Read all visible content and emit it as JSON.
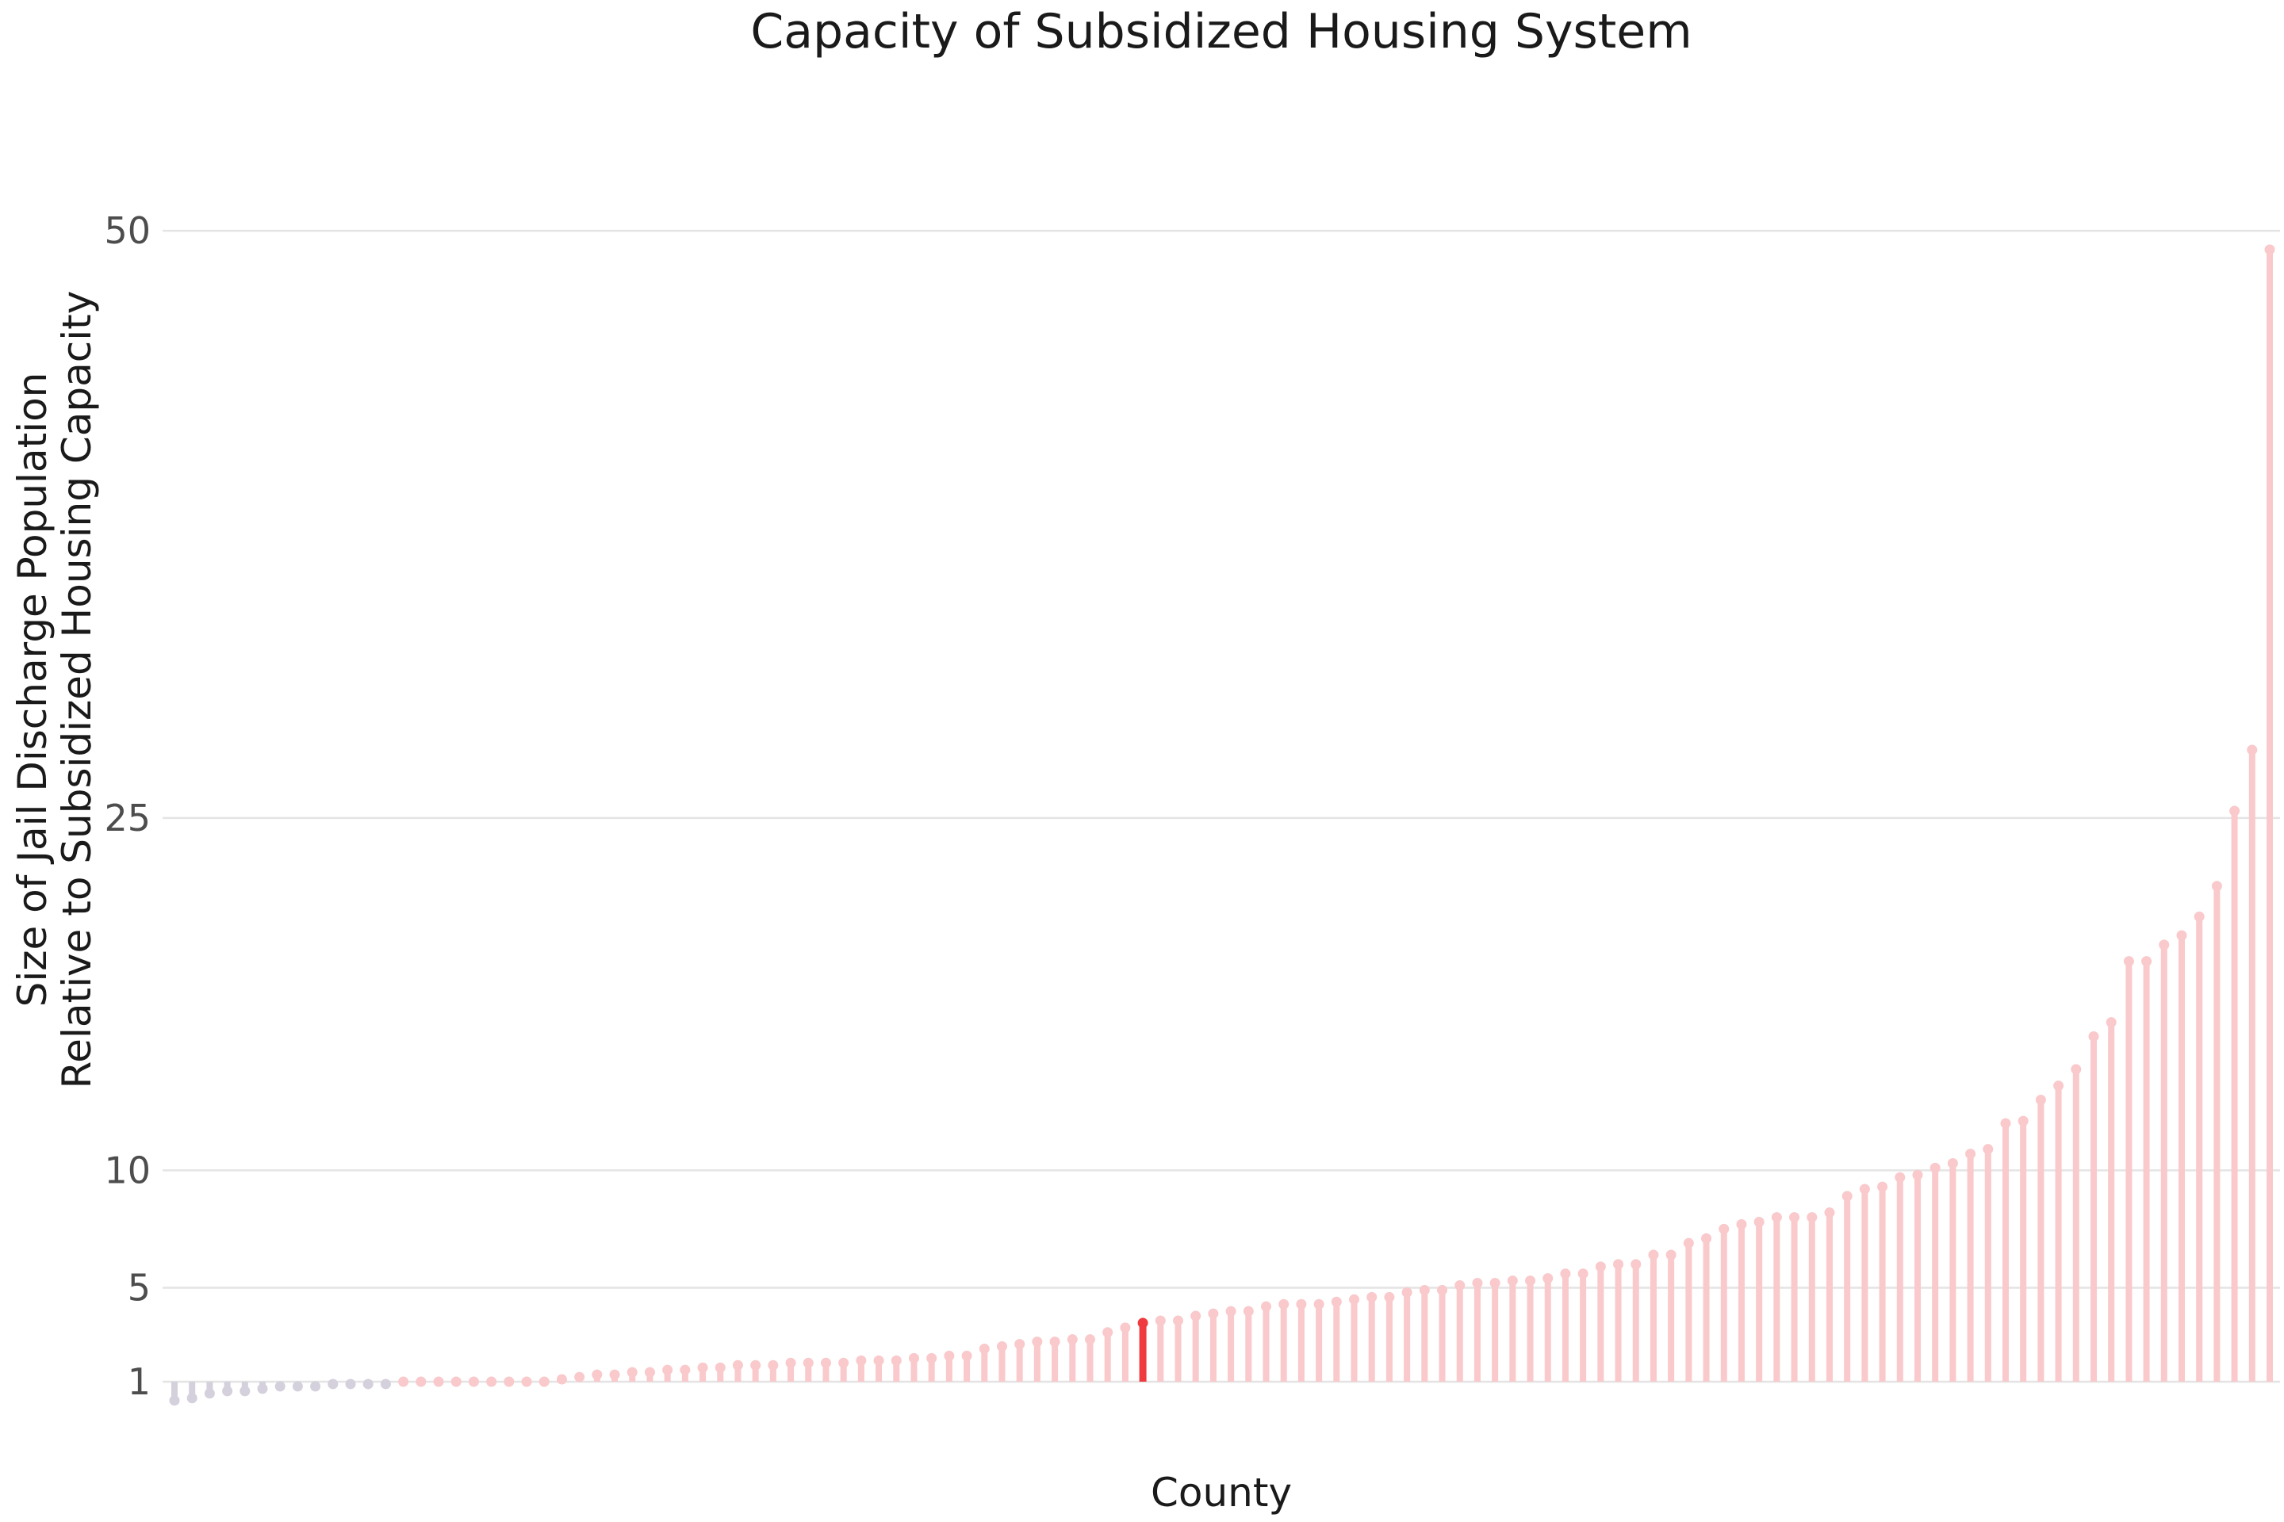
{
  "chart_data": {
    "type": "lollipop",
    "title": "Capacity of Subsidized Housing System",
    "xlabel": "County",
    "ylabel": [
      "Size of Jail Discharge Population",
      "Relative to Subsidized Housing Capacity"
    ],
    "yticks": [
      1,
      5,
      10,
      25,
      50
    ],
    "ylim": [
      0,
      51
    ],
    "baseline": 1,
    "grid": "horizontal",
    "legend": "none",
    "colors": {
      "below_baseline": "#d4d0dc",
      "above_baseline": "#f9c9cb",
      "highlight": "#ef3b3f"
    },
    "highlight_index": 55,
    "values": [
      0.2,
      0.3,
      0.5,
      0.6,
      0.6,
      0.7,
      0.8,
      0.8,
      0.8,
      0.9,
      0.9,
      0.9,
      0.9,
      1.0,
      1.0,
      1.0,
      1.0,
      1.0,
      1.0,
      1.0,
      1.0,
      1.0,
      1.1,
      1.2,
      1.3,
      1.3,
      1.4,
      1.4,
      1.5,
      1.5,
      1.6,
      1.6,
      1.7,
      1.7,
      1.7,
      1.8,
      1.8,
      1.8,
      1.8,
      1.9,
      1.9,
      1.9,
      2.0,
      2.0,
      2.1,
      2.1,
      2.4,
      2.5,
      2.6,
      2.7,
      2.7,
      2.8,
      2.8,
      3.1,
      3.3,
      3.5,
      3.6,
      3.6,
      3.8,
      3.9,
      4.0,
      4.0,
      4.2,
      4.3,
      4.3,
      4.3,
      4.4,
      4.5,
      4.6,
      4.6,
      4.8,
      4.9,
      4.9,
      5.1,
      5.2,
      5.2,
      5.3,
      5.3,
      5.4,
      5.6,
      5.6,
      5.9,
      6.0,
      6.0,
      6.4,
      6.4,
      6.9,
      7.1,
      7.5,
      7.7,
      7.8,
      8.0,
      8.0,
      8.0,
      8.2,
      8.9,
      9.2,
      9.3,
      9.7,
      9.8,
      10.1,
      10.3,
      10.7,
      10.9,
      12.0,
      12.1,
      13.0,
      13.6,
      14.3,
      15.7,
      16.3,
      18.9,
      18.9,
      19.6,
      20.0,
      20.8,
      22.1,
      25.3,
      27.9,
      49.2
    ]
  }
}
